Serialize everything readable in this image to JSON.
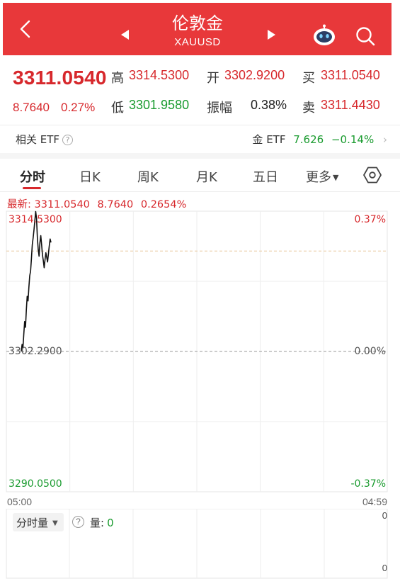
{
  "header": {
    "title": "伦敦金",
    "subtitle": "XAUUSD"
  },
  "quote": {
    "price": "3311.0540",
    "change": "8.7640",
    "change_pct": "0.27%",
    "high_label": "高",
    "high": "3314.5300",
    "open_label": "开",
    "open": "3302.9200",
    "bid_label": "买",
    "bid": "3311.0540",
    "low_label": "低",
    "low": "3301.9580",
    "amplitude_label": "振幅",
    "amplitude": "0.38%",
    "ask_label": "卖",
    "ask": "3311.4430"
  },
  "etf": {
    "label": "相关 ETF",
    "help": "?",
    "name": "金 ETF",
    "value": "7.626",
    "change": "−0.14%",
    "chevron": "›"
  },
  "tabs": [
    {
      "label": "分时",
      "active": true
    },
    {
      "label": "日K"
    },
    {
      "label": "周K"
    },
    {
      "label": "月K"
    },
    {
      "label": "五日"
    },
    {
      "label": "更多"
    }
  ],
  "tab_more_caret": "▼",
  "latest": {
    "label": "最新: 3311.0540",
    "change": "8.7640",
    "pct": "0.2654%"
  },
  "colors": {
    "brand": "#e8383a",
    "up": "#d7282c",
    "down": "#1a9b2f"
  },
  "icons": {
    "back": "chevron-left-icon",
    "prev": "triangle-left-icon",
    "next": "triangle-right-icon",
    "robot": "robot-assistant-icon",
    "search": "search-icon",
    "settings": "hexagon-settings-icon"
  },
  "chart_data": {
    "type": "line",
    "y_labels_left": {
      "top": "3314.5300",
      "mid": "3302.2900",
      "bottom": "3290.0500"
    },
    "y_labels_right": {
      "top": "0.37%",
      "mid": "0.00%",
      "bottom": "-0.37%"
    },
    "x_labels": [
      "05:00",
      "04:59"
    ],
    "ylim": [
      3290.05,
      3314.53
    ],
    "reference_close": 3302.29,
    "dashed_line": 3311.054,
    "series": [
      {
        "values": [
          3302.3,
          3302.9,
          3302.6,
          3303.8,
          3304.9,
          3304.4,
          3305.9,
          3307.1,
          3306.7,
          3307.9,
          3308.9,
          3309.3,
          3310.4,
          3311.6,
          3312.2,
          3312.9,
          3313.7,
          3314.5,
          3313.9,
          3312.2,
          3311.2,
          3310.6,
          3311.8,
          3312.4,
          3311.6,
          3310.7,
          3310.2,
          3309.6,
          3310.3,
          3310.9,
          3310.5,
          3310.1,
          3310.8,
          3311.5,
          3312.1,
          3311.8
        ]
      }
    ],
    "grid": true
  },
  "volume": {
    "selector": "分时量",
    "selector_caret": "▼",
    "help": "?",
    "label": "量:",
    "value": "0",
    "axis_top": "0",
    "axis_bottom": "0"
  }
}
